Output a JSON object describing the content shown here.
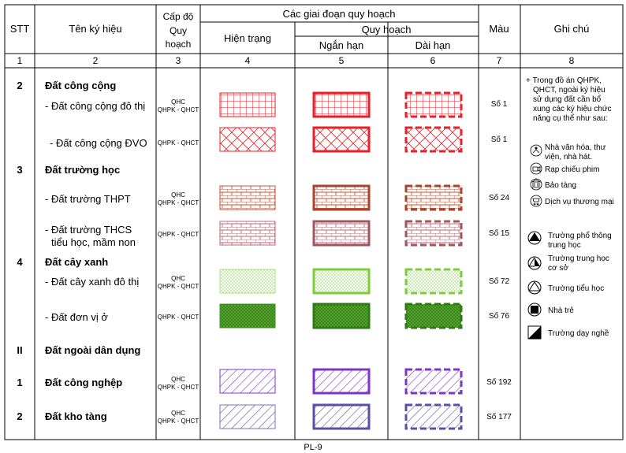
{
  "header": {
    "stt": "STT",
    "ten": "Tên ký hiệu",
    "cap_do": [
      "Cấp độ",
      "Quy",
      "hoạch"
    ],
    "giai_doan": "Các giai đoạn quy hoạch",
    "hien_trang": "Hiện trạng",
    "quy_hoach": "Quy hoạch",
    "ngan_han": "Ngắn hạn",
    "dai_han": "Dài hạn",
    "mau": "Màu",
    "ghi_chu": "Ghi chú"
  },
  "col_numbers": [
    "1",
    "2",
    "3",
    "4",
    "5",
    "6",
    "7",
    "8"
  ],
  "rows": [
    {
      "stt": "2",
      "name": "Đất công cộng",
      "bold": true
    },
    {
      "name": "- Đất công cộng đô thị",
      "level": [
        "QHC",
        "QHPK - QHCT"
      ],
      "pattern": "grid",
      "color": "#e8202a",
      "mau": "Số 1"
    },
    {
      "name": "- Đất công cộng ĐVO",
      "level": [
        "QHPK - QHCT"
      ],
      "pattern": "diamond",
      "color": "#e8202a",
      "mau": "Số 1"
    },
    {
      "stt": "3",
      "name": "Đất trường học",
      "bold": true
    },
    {
      "name": "- Đất  trường THPT",
      "level": [
        "QHC",
        "QHPK - QHCT"
      ],
      "pattern": "brick",
      "color": "#c0563b",
      "mau": "Số 24"
    },
    {
      "name": [
        "- Đất  trường THCS",
        "tiểu học, mầm non"
      ],
      "level": [
        "QHPK - QHCT"
      ],
      "pattern": "brick",
      "color": "#b86a74",
      "mau": "Số 15"
    },
    {
      "stt": "4",
      "name": "Đất cây xanh",
      "bold": true
    },
    {
      "name": "- Đất  cây xanh đô thị",
      "level": [
        "QHC",
        "QHPK - QHCT"
      ],
      "pattern": "dots",
      "color": "#7ccc3a",
      "mau": "Số 72"
    },
    {
      "name": "- Đất  đơn vị ở",
      "level": [
        "QHPK - QHCT"
      ],
      "pattern": "dense",
      "color": "#3f8f1f",
      "mau": "Số 76"
    },
    {
      "stt": "II",
      "name": "Đất ngoài dân dụng",
      "bold": true
    },
    {
      "stt": "1",
      "name": "Đất công nghệp",
      "bold": true,
      "level": [
        "QHC",
        "QHPK - QHCT"
      ],
      "pattern": "diag",
      "color": "#7d34c9",
      "mau": "Số 192"
    },
    {
      "stt": "2",
      "name": "Đất kho tàng",
      "bold": true,
      "level": [
        "QHC",
        "QHPK - QHCT"
      ],
      "pattern": "diag",
      "color": "#5a4fa6",
      "mau": "Số 177"
    }
  ],
  "notes": {
    "intro": [
      "+ Trong đồ án QHPK,",
      "QHCT, ngoài ký hiệu",
      "sử dụng đất cần bổ",
      "xung các ký hiệu chức",
      "năng cụ thể như sau:"
    ],
    "items": [
      {
        "icon": "theater-icon",
        "text": [
          "Nhà văn hóa, thư",
          "viện, nhà hát."
        ]
      },
      {
        "icon": "cinema-icon",
        "text": [
          "Rạp chiếu phim"
        ]
      },
      {
        "icon": "museum-icon",
        "text": [
          "Bảo tàng"
        ]
      },
      {
        "icon": "commerce-icon",
        "text": [
          "Dịch vụ thương mại"
        ]
      },
      {
        "icon": "high-school-icon",
        "text": [
          "Trường phổ thông",
          "trung học"
        ]
      },
      {
        "icon": "middle-school-icon",
        "text": [
          "Trường trung học",
          "cơ sở"
        ]
      },
      {
        "icon": "primary-school-icon",
        "text": [
          "Trường tiểu học"
        ]
      },
      {
        "icon": "kindergarten-icon",
        "text": [
          "Nhà trẻ"
        ]
      },
      {
        "icon": "vocational-school-icon",
        "text": [
          "Trường dạy nghề"
        ]
      }
    ]
  },
  "footer": "PL-9"
}
